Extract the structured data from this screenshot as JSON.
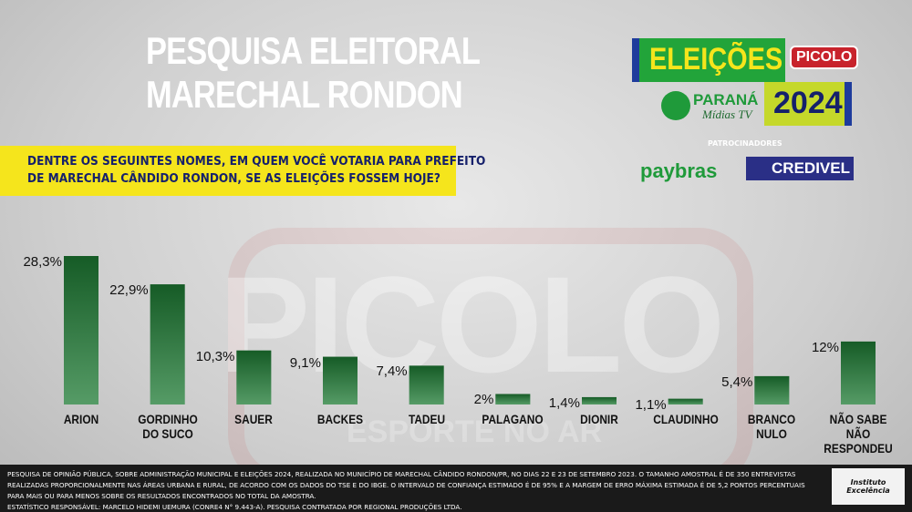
{
  "header": {
    "title": [
      "PESQUISA ELEITORAL",
      "MARECHAL RONDON"
    ],
    "question": [
      "DENTRE OS SEGUINTES NOMES, EM QUEM VOCÊ VOTARIA PARA PREFEITO",
      "DE MARECHAL CÂNDIDO RONDON, SE AS ELEIÇÕES FOSSEM HOJE?"
    ]
  },
  "logos": {
    "elections": "ELEIÇÕES",
    "year": "2024",
    "picolo": "PICOLO",
    "parana": "PARANÁ",
    "midias": "Mídias TV",
    "sponsors": "PATROCINADORES",
    "sponsor1": "paybras",
    "sponsor2": "CREDIVEL",
    "institute": "Instituto Excelência"
  },
  "watermark": {
    "main": "PICOLO",
    "sub": "ESPORTE NO AR"
  },
  "chart_data": {
    "type": "bar",
    "categories": [
      "ARION",
      "GORDINHO\nDO SUCO",
      "SAUER",
      "BACKES",
      "TADEU",
      "PALAGANO",
      "DIONIR",
      "CLAUDINHO",
      "BRANCO\nNULO",
      "NÃO SABE\nNÃO RESPONDEU"
    ],
    "values": [
      28.3,
      22.9,
      10.3,
      9.1,
      7.4,
      2,
      1.4,
      1.1,
      5.4,
      12
    ],
    "value_labels": [
      "28,3%",
      "22,9%",
      "10,3%",
      "9,1%",
      "7,4%",
      "2%",
      "1,4%",
      "1,1%",
      "5,4%",
      "12%"
    ],
    "color": "#1d7a33"
  },
  "footer": {
    "lines": [
      "PESQUISA DE OPINIÃO PÚBLICA, SOBRE ADMINISTRAÇÃO MUNICIPAL E ELEIÇÕES 2024, REALIZADA NO MUNICÍPIO DE MARECHAL CÂNDIDO RONDON/PR, NO DIAS 22 E 23 DE SETEMBRO 2023. O TAMANHO AMOSTRAL É DE 350 ENTREVISTAS REALIZADAS PROPORCIONALMENTE NAS ÁREAS URBANA E RURAL, DE ACORDO COM OS DADOS DO TSE E DO IBGE. O INTERVALO DE CONFIANÇA ESTIMADO É DE 95% E A MARGEM DE ERRO MÁXIMA ESTIMADA É DE 5,2 PONTOS PERCENTUAIS PARA MAIS OU PARA MENOS SOBRE OS RESULTADOS ENCONTRADOS NO TOTAL DA AMOSTRA.",
      "ESTATÍSTICO RESPONSÁVEL: MARCELO HIDEMI UEMURA (CONRE4 N° 9.443-A). PESQUISA CONTRATADA POR REGIONAL PRODUÇÕES LTDA."
    ]
  }
}
